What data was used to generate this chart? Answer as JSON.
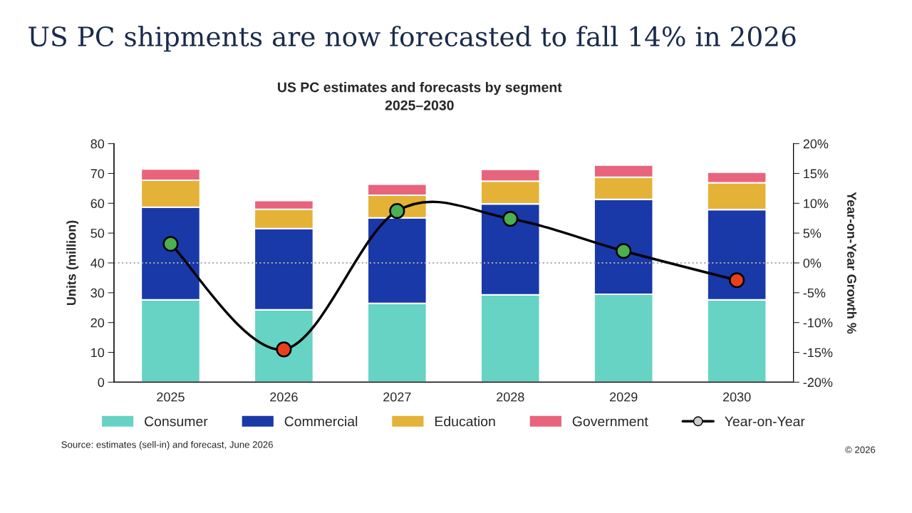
{
  "chart_data": {
    "type": "bar",
    "title": "US PC shipments are now forecasted to fall 14% in 2026",
    "subtitle": "US PC estimates and forecasts by segment\n2025–2030",
    "ylabel": "Units (million)",
    "y2label": "Year-on-Year Growth %",
    "categories": [
      "2025",
      "2026",
      "2027",
      "2028",
      "2029",
      "2030"
    ],
    "stacked": true,
    "series": [
      {
        "name": "Consumer",
        "color": "#66d3c4",
        "values": [
          27.6,
          24.3,
          26.4,
          29.3,
          29.5,
          27.6
        ]
      },
      {
        "name": "Commercial",
        "color": "#1939a8",
        "values": [
          31.1,
          27.2,
          28.7,
          30.5,
          31.8,
          30.3
        ]
      },
      {
        "name": "Education",
        "color": "#e4b236",
        "values": [
          9.0,
          6.5,
          7.6,
          7.6,
          7.4,
          9.0
        ]
      },
      {
        "name": "Government",
        "color": "#e8647c",
        "values": [
          3.8,
          2.9,
          3.7,
          4.0,
          4.1,
          3.5
        ]
      },
      {
        "name": "Year-on-Year",
        "type": "line",
        "axis": "y2",
        "color": "#000000",
        "marker": "circle",
        "colors": [
          "#4caf50",
          "#e8401c",
          "#4caf50",
          "#4caf50",
          "#4caf50",
          "#e8401c"
        ],
        "values": [
          3.2,
          -14.5,
          8.7,
          7.4,
          2.0,
          -2.9
        ]
      }
    ],
    "ylim": [
      0,
      80
    ],
    "yticks": [
      0,
      10,
      20,
      30,
      40,
      50,
      60,
      70,
      80
    ],
    "y2lim": [
      -20,
      20
    ],
    "y2ticks": [
      {
        "value": -20,
        "label": "-20%"
      },
      {
        "value": -15,
        "label": "-15%"
      },
      {
        "value": -10,
        "label": "-10%"
      },
      {
        "value": -5,
        "label": "-5%"
      },
      {
        "value": 0,
        "label": "0%"
      },
      {
        "value": 5,
        "label": "5%"
      },
      {
        "value": 10,
        "label": "10%"
      },
      {
        "value": 15,
        "label": "15%"
      },
      {
        "value": 20,
        "label": "20%"
      }
    ],
    "ref_lines": [
      {
        "axis": "y2",
        "value": 0,
        "color": "#aaaaaa",
        "line_style": "dotted"
      }
    ],
    "legend": "bottom",
    "grid": false,
    "annotations": [
      "Source: estimates (sell-in) and forecast, June 2026",
      "© 2026"
    ]
  }
}
